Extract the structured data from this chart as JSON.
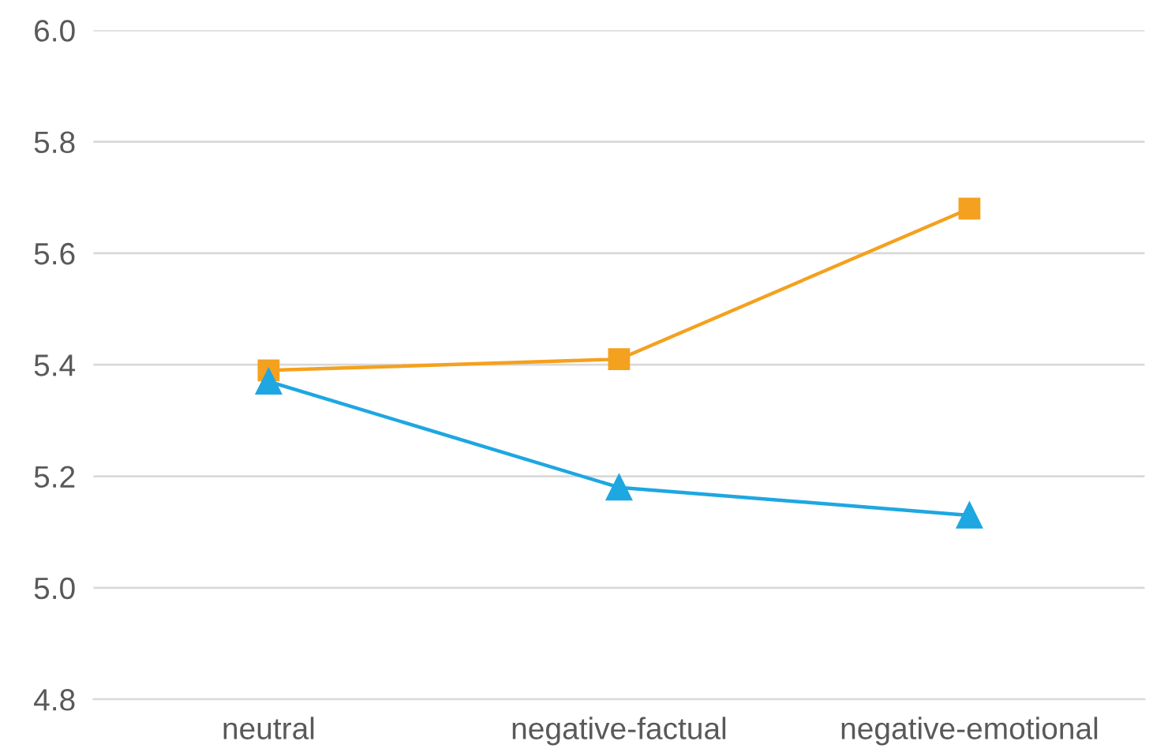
{
  "chart_data": {
    "type": "line",
    "categories": [
      "neutral",
      "negative-factual",
      "negative-emotional"
    ],
    "series": [
      {
        "color": "#f4a11f",
        "marker": "square",
        "values": [
          5.39,
          5.41,
          5.68
        ]
      },
      {
        "color": "#1ea7e1",
        "marker": "triangle",
        "values": [
          5.37,
          5.18,
          5.13
        ]
      }
    ],
    "ylim": [
      4.8,
      6.0
    ],
    "yticks": [
      4.8,
      {
        "value": 5,
        "label": "5.0"
      },
      5.2,
      5.4,
      5.6,
      5.8,
      {
        "value": 6,
        "label": "6.0"
      }
    ],
    "grid": "y",
    "line_style": "solid"
  }
}
